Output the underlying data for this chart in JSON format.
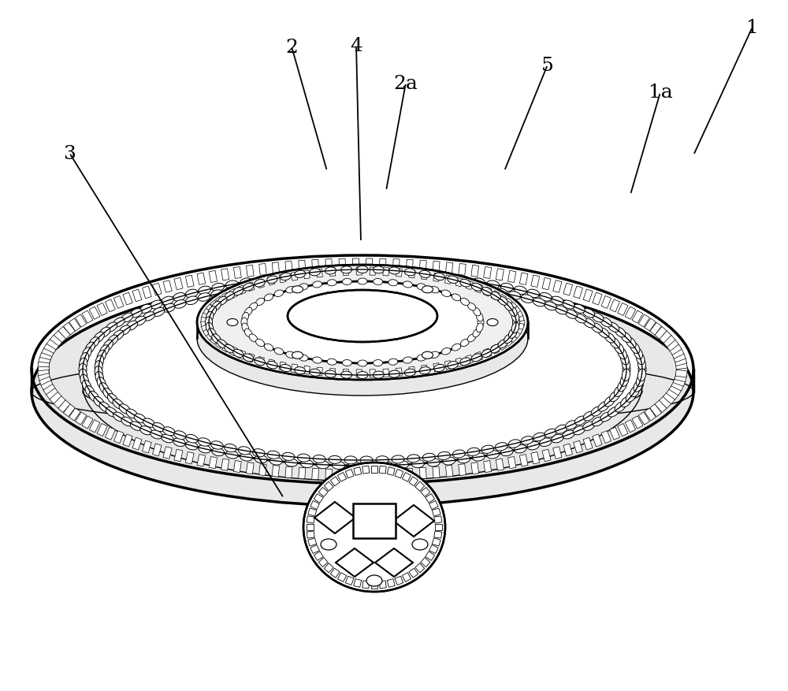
{
  "background_color": "#ffffff",
  "line_color": "#000000",
  "label_color": "#000000",
  "figsize": [
    10.0,
    8.78
  ],
  "dpi": 100,
  "label_fontsize": 18,
  "annotation_lw": 1.3
}
